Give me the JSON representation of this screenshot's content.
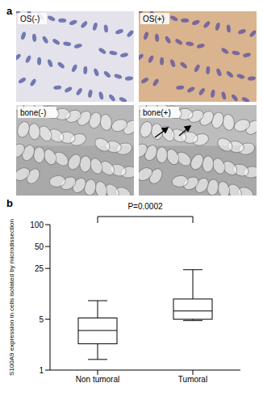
{
  "panel_labels": [
    "a",
    "b"
  ],
  "images": [
    "OS(-)",
    "OS(+)",
    "bone(-)",
    "bone(+)"
  ],
  "chart_data": {
    "type": "box",
    "ylabel": "S100A9 expression in cells isolated by microdissection",
    "categories": [
      "Non tumoral",
      "Tumoral"
    ],
    "stats": {
      "min": [
        1.4,
        4.8
      ],
      "q1": [
        2.3,
        5
      ],
      "median": [
        3.5,
        6.5
      ],
      "q3": [
        5.2,
        9.5
      ],
      "max": [
        9,
        24
      ]
    },
    "ylim": [
      1,
      100
    ],
    "yticks": [
      1,
      5,
      25,
      50,
      100
    ],
    "log": "y",
    "grid": false,
    "color": "#000000",
    "annotations": [
      {
        "text": "P=0.0002"
      }
    ]
  }
}
